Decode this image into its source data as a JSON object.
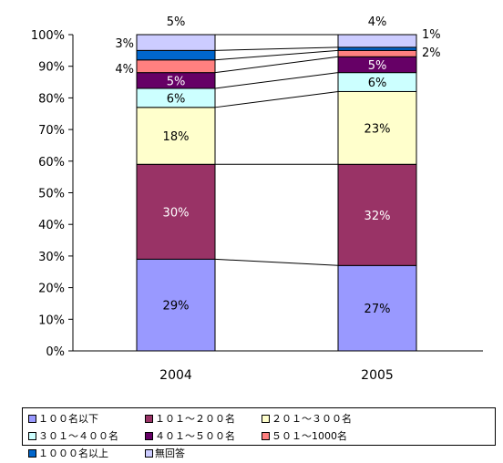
{
  "chart_data": {
    "type": "bar",
    "stacked": true,
    "categories": [
      "2004",
      "2005"
    ],
    "ylim": [
      0,
      100
    ],
    "yticks": [
      "0%",
      "10%",
      "20%",
      "30%",
      "40%",
      "50%",
      "60%",
      "70%",
      "80%",
      "90%",
      "100%"
    ],
    "grid": false,
    "legend_position": "bottom",
    "series": [
      {
        "name": "１００名以下",
        "color": "#9999ff",
        "values": [
          29,
          27
        ],
        "labels": [
          "29%",
          "27%"
        ]
      },
      {
        "name": "１０１～２００名",
        "color": "#993366",
        "values": [
          30,
          32
        ],
        "labels": [
          "30%",
          "32%"
        ]
      },
      {
        "name": "２０１～３００名",
        "color": "#ffffcc",
        "values": [
          18,
          23
        ],
        "labels": [
          "18%",
          "23%"
        ]
      },
      {
        "name": "３０１～４００名",
        "color": "#ccffff",
        "values": [
          6,
          6
        ],
        "labels": [
          "6%",
          "6%"
        ]
      },
      {
        "name": "４０１～５００名",
        "color": "#660066",
        "values": [
          5,
          5
        ],
        "labels": [
          "5%",
          "5%"
        ]
      },
      {
        "name": "５０１～1000名",
        "color": "#ff8080",
        "values": [
          4,
          2
        ],
        "labels": [
          "4%",
          "2%"
        ]
      },
      {
        "name": "１０００名以上",
        "color": "#0066cc",
        "values": [
          3,
          1
        ],
        "labels": [
          "3%",
          "1%"
        ]
      },
      {
        "name": "無回答",
        "color": "#ccccff",
        "values": [
          5,
          4
        ],
        "labels": [
          "5%",
          "4%"
        ]
      }
    ]
  }
}
